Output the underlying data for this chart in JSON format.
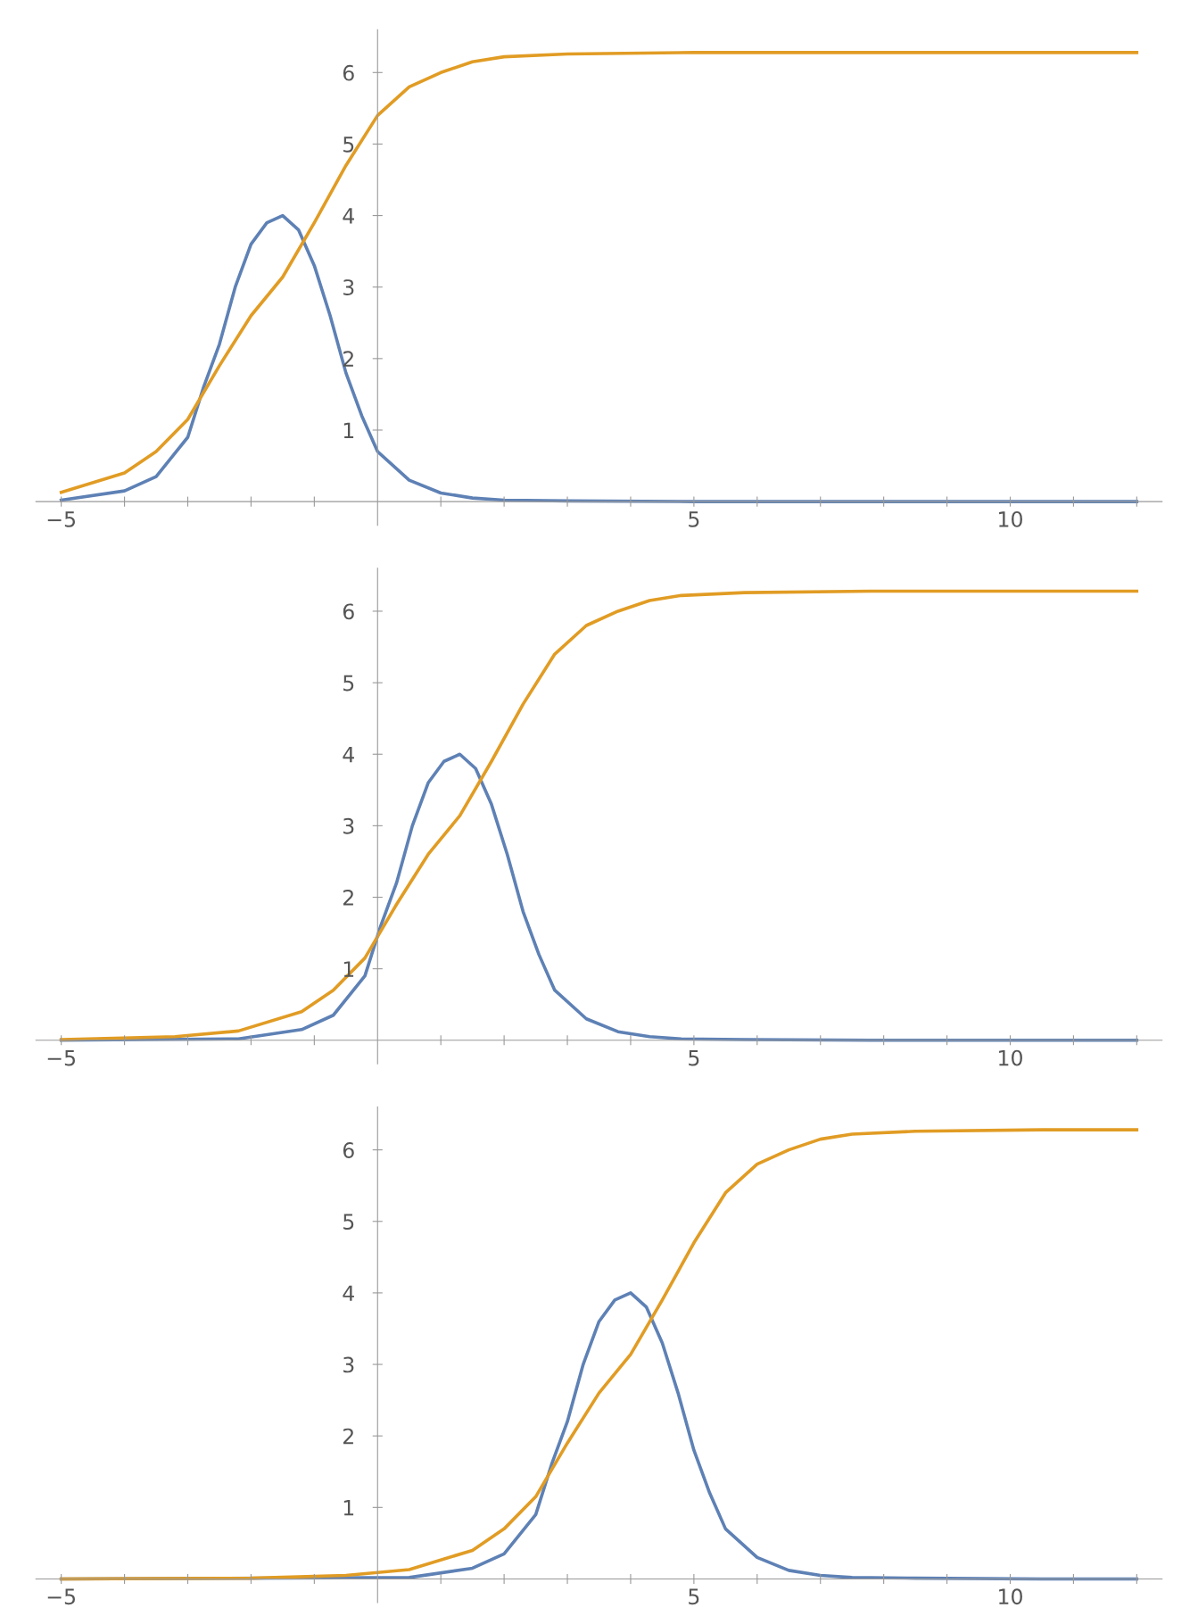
{
  "chart_data": [
    {
      "type": "line",
      "xlim": [
        -5.4,
        12.4
      ],
      "ylim": [
        -0.33,
        6.6
      ],
      "xticks": [
        {
          "value": -5,
          "label": "−5"
        },
        {
          "value": -4,
          "label": null
        },
        {
          "value": -3,
          "label": null
        },
        {
          "value": -2,
          "label": null
        },
        {
          "value": -1,
          "label": null
        },
        {
          "value": 1,
          "label": null
        },
        {
          "value": 2,
          "label": null
        },
        {
          "value": 3,
          "label": null
        },
        {
          "value": 4,
          "label": null
        },
        5,
        {
          "value": 6,
          "label": null
        },
        {
          "value": 7,
          "label": null
        },
        {
          "value": 8,
          "label": null
        },
        {
          "value": 9,
          "label": null
        },
        10,
        {
          "value": 11,
          "label": null
        },
        {
          "value": 12,
          "label": null
        }
      ],
      "yticks": [
        1,
        2,
        3,
        4,
        5,
        6
      ],
      "grid": false,
      "legend": false,
      "series": [
        {
          "color": "#5e81b5",
          "x": [
            -5,
            -4,
            -3.5,
            -3,
            -2.75,
            -2.5,
            -2.25,
            -2,
            -1.75,
            -1.5,
            -1.25,
            -1,
            -0.75,
            -0.5,
            -0.25,
            0,
            0.5,
            1,
            1.5,
            2,
            3,
            5,
            12
          ],
          "values": [
            0.02,
            0.15,
            0.35,
            0.9,
            1.6,
            2.2,
            3.0,
            3.6,
            3.9,
            4.0,
            3.8,
            3.3,
            2.6,
            1.8,
            1.2,
            0.7,
            0.3,
            0.12,
            0.05,
            0.02,
            0.01,
            0,
            0
          ]
        },
        {
          "color": "#e19c24",
          "x": [
            -5,
            -4,
            -3.5,
            -3,
            -2.5,
            -2,
            -1.5,
            -1,
            -0.5,
            0,
            0.5,
            1,
            1.5,
            2,
            3,
            5,
            12
          ],
          "values": [
            0.13,
            0.4,
            0.7,
            1.15,
            1.9,
            2.6,
            3.14,
            3.9,
            4.7,
            5.4,
            5.8,
            6.0,
            6.15,
            6.22,
            6.26,
            6.28,
            6.28
          ]
        }
      ]
    },
    {
      "type": "line",
      "xlim": [
        -5.4,
        12.4
      ],
      "ylim": [
        -0.33,
        6.6
      ],
      "xticks": [
        {
          "value": -5,
          "label": "−5"
        },
        {
          "value": -4,
          "label": null
        },
        {
          "value": -3,
          "label": null
        },
        {
          "value": -2,
          "label": null
        },
        {
          "value": -1,
          "label": null
        },
        {
          "value": 1,
          "label": null
        },
        {
          "value": 2,
          "label": null
        },
        {
          "value": 3,
          "label": null
        },
        {
          "value": 4,
          "label": null
        },
        5,
        {
          "value": 6,
          "label": null
        },
        {
          "value": 7,
          "label": null
        },
        {
          "value": 8,
          "label": null
        },
        {
          "value": 9,
          "label": null
        },
        10,
        {
          "value": 11,
          "label": null
        },
        {
          "value": 12,
          "label": null
        }
      ],
      "yticks": [
        1,
        2,
        3,
        4,
        5,
        6
      ],
      "grid": false,
      "legend": false,
      "series": [
        {
          "color": "#5e81b5",
          "x": [
            -5,
            -2.2,
            -1.2,
            -0.7,
            -0.2,
            0.05,
            0.3,
            0.55,
            0.8,
            1.05,
            1.3,
            1.55,
            1.8,
            2.05,
            2.3,
            2.55,
            2.8,
            3.3,
            3.8,
            4.3,
            4.8,
            5.8,
            7.8,
            12
          ],
          "values": [
            0,
            0.02,
            0.15,
            0.35,
            0.9,
            1.6,
            2.2,
            3.0,
            3.6,
            3.9,
            4.0,
            3.8,
            3.3,
            2.6,
            1.8,
            1.2,
            0.7,
            0.3,
            0.12,
            0.05,
            0.02,
            0.01,
            0,
            0
          ]
        },
        {
          "color": "#e19c24",
          "x": [
            -5,
            -3.2,
            -2.2,
            -1.2,
            -0.7,
            -0.2,
            0.3,
            0.8,
            1.3,
            1.8,
            2.3,
            2.8,
            3.3,
            3.8,
            4.3,
            4.8,
            5.8,
            7.8,
            12
          ],
          "values": [
            0.01,
            0.05,
            0.13,
            0.4,
            0.7,
            1.15,
            1.9,
            2.6,
            3.14,
            3.9,
            4.7,
            5.4,
            5.8,
            6.0,
            6.15,
            6.22,
            6.26,
            6.28,
            6.28
          ]
        }
      ]
    },
    {
      "type": "line",
      "xlim": [
        -5.4,
        12.4
      ],
      "ylim": [
        -0.33,
        6.6
      ],
      "xticks": [
        {
          "value": -5,
          "label": "−5"
        },
        {
          "value": -4,
          "label": null
        },
        {
          "value": -3,
          "label": null
        },
        {
          "value": -2,
          "label": null
        },
        {
          "value": -1,
          "label": null
        },
        {
          "value": 1,
          "label": null
        },
        {
          "value": 2,
          "label": null
        },
        {
          "value": 3,
          "label": null
        },
        {
          "value": 4,
          "label": null
        },
        5,
        {
          "value": 6,
          "label": null
        },
        {
          "value": 7,
          "label": null
        },
        {
          "value": 8,
          "label": null
        },
        {
          "value": 9,
          "label": null
        },
        10,
        {
          "value": 11,
          "label": null
        },
        {
          "value": 12,
          "label": null
        }
      ],
      "yticks": [
        1,
        2,
        3,
        4,
        5,
        6
      ],
      "grid": false,
      "legend": false,
      "series": [
        {
          "color": "#5e81b5",
          "x": [
            -5,
            0.5,
            1.5,
            2,
            2.5,
            2.75,
            3,
            3.25,
            3.5,
            3.75,
            4,
            4.25,
            4.5,
            4.75,
            5,
            5.25,
            5.5,
            6,
            6.5,
            7,
            7.5,
            8.5,
            10.5,
            12
          ],
          "values": [
            0,
            0.02,
            0.15,
            0.35,
            0.9,
            1.6,
            2.2,
            3.0,
            3.6,
            3.9,
            4.0,
            3.8,
            3.3,
            2.6,
            1.8,
            1.2,
            0.7,
            0.3,
            0.12,
            0.05,
            0.02,
            0.01,
            0,
            0
          ]
        },
        {
          "color": "#e19c24",
          "x": [
            -5,
            -2,
            -0.5,
            0.5,
            1.5,
            2,
            2.5,
            3,
            3.5,
            4,
            4.5,
            5,
            5.5,
            6,
            6.5,
            7,
            7.5,
            8.5,
            10.5,
            12
          ],
          "values": [
            0.0,
            0.01,
            0.05,
            0.13,
            0.4,
            0.7,
            1.15,
            1.9,
            2.6,
            3.14,
            3.9,
            4.7,
            5.4,
            5.8,
            6.0,
            6.15,
            6.22,
            6.26,
            6.28,
            6.28
          ]
        }
      ]
    }
  ]
}
